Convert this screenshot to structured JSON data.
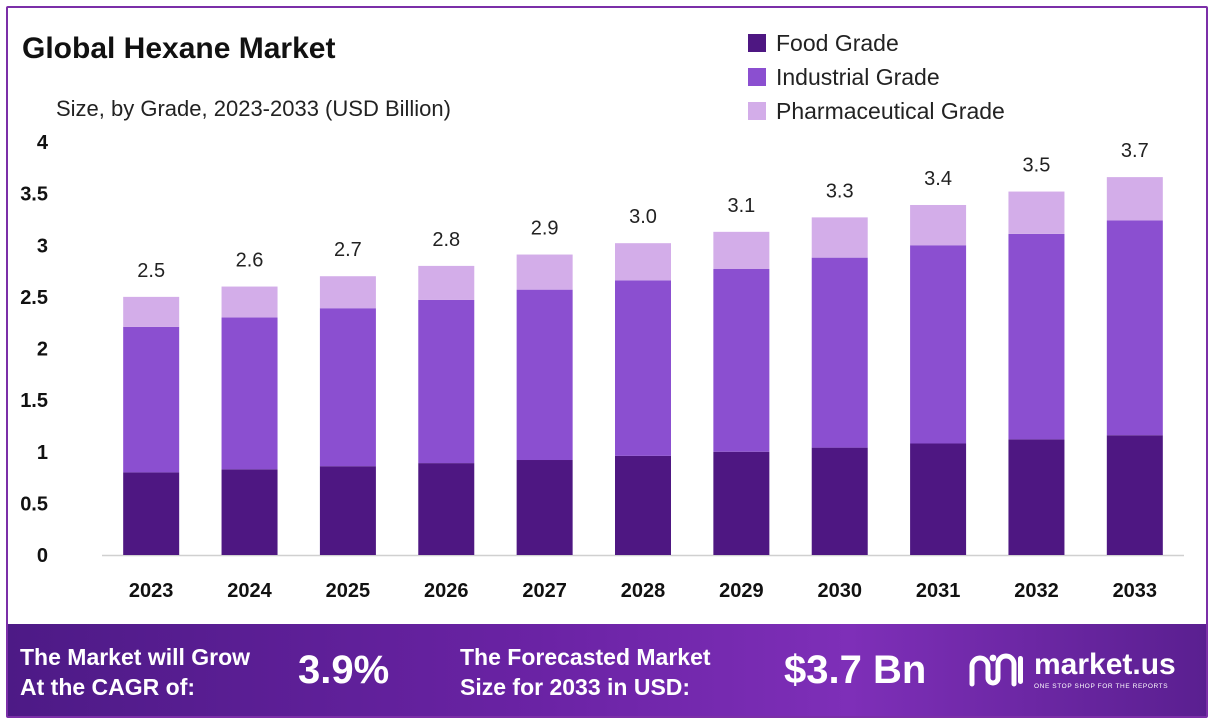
{
  "chart_data": {
    "type": "bar",
    "stacked": true,
    "title": "Global Hexane Market",
    "subtitle": "Size, by Grade, 2023-2033 (USD Billion)",
    "categories": [
      "2023",
      "2024",
      "2025",
      "2026",
      "2027",
      "2028",
      "2029",
      "2030",
      "2031",
      "2032",
      "2033"
    ],
    "series": [
      {
        "name": "Food Grade",
        "color": "#4e1782",
        "values": [
          0.8,
          0.83,
          0.86,
          0.89,
          0.92,
          0.96,
          1.0,
          1.04,
          1.08,
          1.12,
          1.16
        ]
      },
      {
        "name": "Industrial Grade",
        "color": "#8b4fd0",
        "values": [
          1.41,
          1.47,
          1.53,
          1.58,
          1.65,
          1.7,
          1.77,
          1.84,
          1.92,
          1.99,
          2.08
        ]
      },
      {
        "name": "Pharmaceutical Grade",
        "color": "#d3ade9",
        "values": [
          0.29,
          0.3,
          0.31,
          0.33,
          0.34,
          0.36,
          0.36,
          0.39,
          0.39,
          0.41,
          0.42
        ]
      }
    ],
    "totals_labels": [
      "2.5",
      "2.6",
      "2.7",
      "2.8",
      "2.9",
      "3.0",
      "3.1",
      "3.3",
      "3.4",
      "3.5",
      "3.7"
    ],
    "ylim": [
      0,
      4
    ],
    "yticks": [
      "0",
      "0.5",
      "1",
      "1.5",
      "2",
      "2.5",
      "3",
      "3.5",
      "4"
    ],
    "xlabel": "",
    "ylabel": "",
    "grid": false,
    "legend_position": "top-right"
  },
  "footer": {
    "cagr_line1": "The Market will Grow",
    "cagr_line2": "At the CAGR of:",
    "cagr_value": "3.9%",
    "forecast_line1": "The Forecasted Market",
    "forecast_line2": "Size for 2033 in USD:",
    "forecast_value": "$3.7 Bn",
    "logo_name": "market.us",
    "logo_tagline": "ONE STOP SHOP FOR THE REPORTS"
  }
}
